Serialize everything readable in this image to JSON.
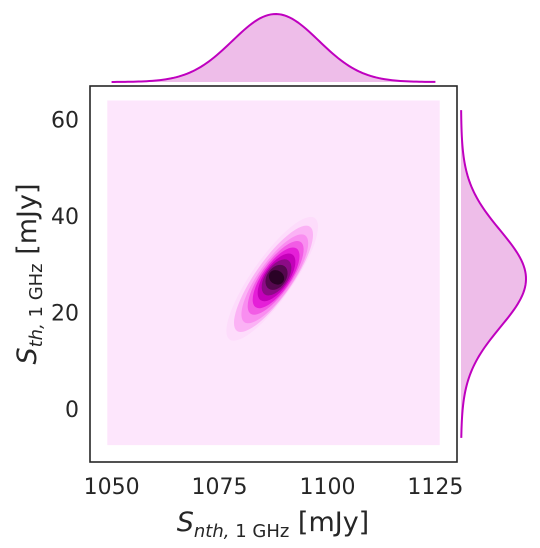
{
  "chart_data": {
    "type": "kde-jointplot",
    "title": "",
    "xlabel": {
      "symbol": "S",
      "sub_var": "nth,",
      "sub_unit": " 1 GHz",
      "unit": " [mJy]"
    },
    "ylabel": {
      "symbol": "S",
      "sub_var": "th,",
      "sub_unit": " 1 GHz",
      "unit": " [mJy]"
    },
    "xlim": [
      1045,
      1130
    ],
    "ylim": [
      -11,
      67
    ],
    "xticks": [
      1050,
      1075,
      1100,
      1125
    ],
    "yticks": [
      0,
      20,
      40,
      60
    ],
    "x_tick_labels": [
      "1050",
      "1075",
      "1100",
      "1125"
    ],
    "y_tick_labels": [
      "0",
      "20",
      "40",
      "60"
    ],
    "grid": false,
    "kde": {
      "peak": {
        "x": 1088,
        "y": 27
      },
      "levels": [
        {
          "level": 1,
          "cx": 1087.2,
          "cy": 27.0,
          "a": 28.0,
          "b": 3.4,
          "angle": 125.0,
          "color": "#fddcfb"
        },
        {
          "level": 2,
          "cx": 1087.5,
          "cy": 27.0,
          "a": 24.0,
          "b": 2.9,
          "angle": 125.0,
          "color": "#fbb2f5"
        },
        {
          "level": 3,
          "cx": 1087.8,
          "cy": 27.0,
          "a": 20.0,
          "b": 2.5,
          "angle": 125.0,
          "color": "#f98ef0"
        },
        {
          "level": 4,
          "cx": 1088.0,
          "cy": 27.2,
          "a": 16.5,
          "b": 2.1,
          "angle": 125.0,
          "color": "#f25ce5"
        },
        {
          "level": 5,
          "cx": 1088.1,
          "cy": 27.2,
          "a": 13.5,
          "b": 1.8,
          "angle": 125.0,
          "color": "#e51fd8"
        },
        {
          "level": 6,
          "cx": 1088.2,
          "cy": 27.3,
          "a": 10.5,
          "b": 1.45,
          "angle": 125.0,
          "color": "#c400ba"
        },
        {
          "level": 7,
          "cx": 1088.2,
          "cy": 27.3,
          "a": 7.8,
          "b": 1.15,
          "angle": 125.0,
          "color": "#8c0b86"
        },
        {
          "level": 8,
          "cx": 1088.2,
          "cy": 27.3,
          "a": 5.2,
          "b": 0.8,
          "angle": 125.0,
          "color": "#55084f"
        },
        {
          "level": 9,
          "cx": 1088.2,
          "cy": 27.3,
          "a": 2.6,
          "b": 0.45,
          "angle": 125.0,
          "color": "#2a0226"
        }
      ],
      "background_region": {
        "x": [
          1049,
          1126
        ],
        "y": [
          -7.5,
          64
        ]
      }
    },
    "marginal_x": {
      "mean": 1088,
      "sd": 10,
      "x_range": [
        1050,
        1125
      ],
      "color": "#bf00bf"
    },
    "marginal_y": {
      "mean": 27,
      "sd": 10,
      "y_range": [
        -6,
        62
      ],
      "color": "#bf00bf"
    },
    "colors": {
      "background": "#fde6fc",
      "line": "#bf00bf",
      "fill": "#eebde9"
    }
  }
}
